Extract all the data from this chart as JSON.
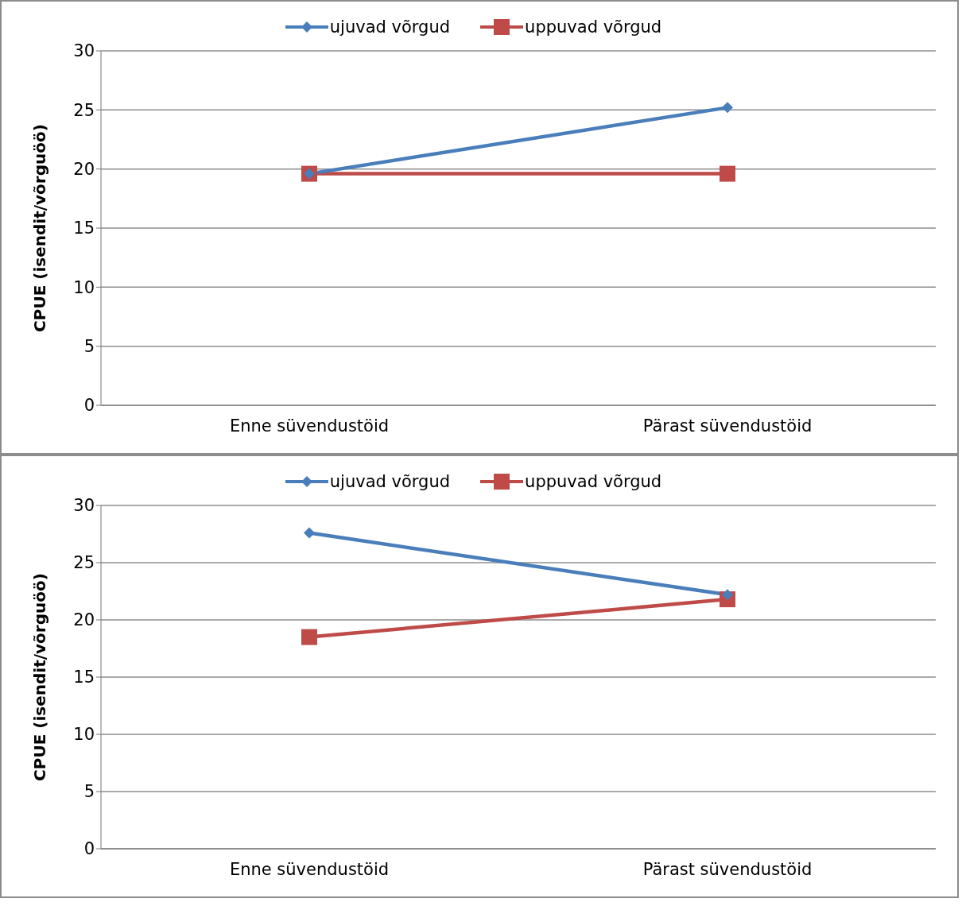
{
  "chart_data": [
    {
      "type": "line",
      "ylabel": "CPUE (isendit/võrguöö)",
      "categories": [
        "Enne süvendustöid",
        "Pärast süvendustöid"
      ],
      "ylim": [
        0,
        30
      ],
      "yticks": [
        0,
        5,
        10,
        15,
        20,
        25,
        30
      ],
      "grid": "y",
      "legend": "top",
      "line_style": "solid",
      "series": [
        {
          "name": "ujuvad võrgud",
          "color": "#4a7ebb",
          "marker": "diamond",
          "values": [
            19.6,
            25.2
          ]
        },
        {
          "name": "uppuvad võrgud",
          "color": "#be4b48",
          "marker": "square",
          "values": [
            19.6,
            19.6
          ]
        }
      ]
    },
    {
      "type": "line",
      "ylabel": "CPUE (isendit/võrguöö)",
      "categories": [
        "Enne süvendustöid",
        "Pärast süvendustöid"
      ],
      "ylim": [
        0,
        30
      ],
      "yticks": [
        0,
        5,
        10,
        15,
        20,
        25,
        30
      ],
      "grid": "y",
      "legend": "top",
      "line_style": "solid",
      "series": [
        {
          "name": "ujuvad võrgud",
          "color": "#4a7ebb",
          "marker": "diamond",
          "values": [
            27.6,
            22.2
          ]
        },
        {
          "name": "uppuvad võrgud",
          "color": "#be4b48",
          "marker": "square",
          "values": [
            18.5,
            21.8
          ]
        }
      ]
    }
  ]
}
